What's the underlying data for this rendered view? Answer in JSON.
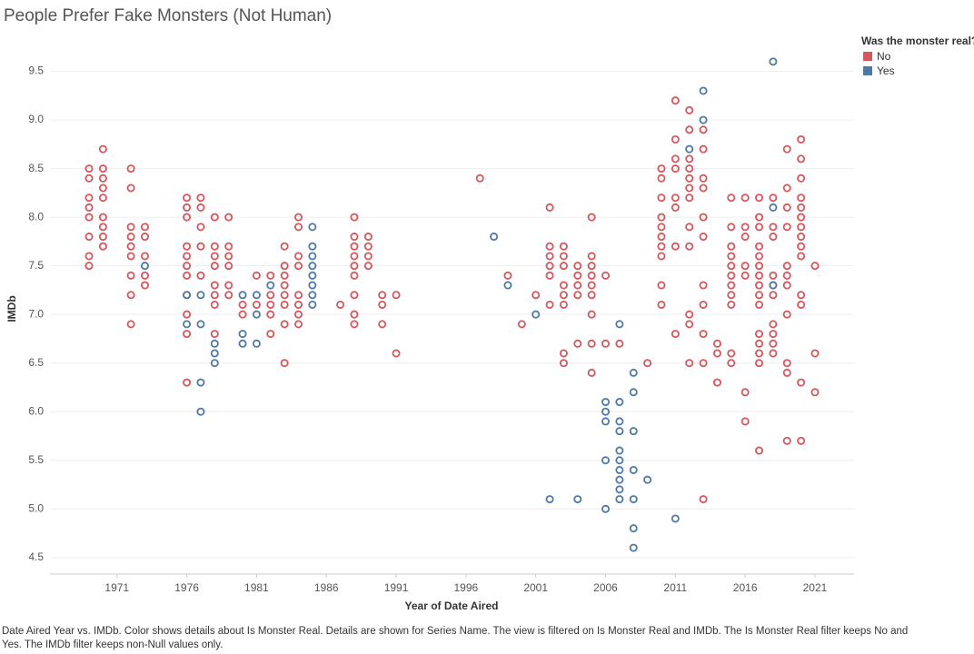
{
  "chart_data": {
    "type": "scatter",
    "title": "People Prefer Fake Monsters (Not Human)",
    "x_label": "Year of Date Aired",
    "y_label": "IMDb",
    "legend_title": "Was the monster real?",
    "legend_position": "right",
    "caption": "Date Aired Year vs. IMDb.  Color shows details about Is Monster Real.  Details are shown for Series Name. The view is filtered on Is Monster Real and IMDb. The Is Monster Real filter keeps No and Yes. The IMDb filter keeps non-Null values only.",
    "grid": true,
    "xlim": [
      1966.2,
      2023.8
    ],
    "xticks": [
      1971,
      1976,
      1981,
      1986,
      1991,
      1996,
      2001,
      2006,
      2011,
      2016,
      2021
    ],
    "ylim": [
      4.33,
      9.86
    ],
    "yticks": [
      4.5,
      {
        "value": 5,
        "label": "5.0"
      },
      5.5,
      {
        "value": 6,
        "label": "6.0"
      },
      6.5,
      {
        "value": 7,
        "label": "7.0"
      },
      7.5,
      {
        "value": 8,
        "label": "8.0"
      },
      8.5,
      {
        "value": 9,
        "label": "9.0"
      },
      9.5
    ],
    "series": [
      {
        "name": "No",
        "color": "#d4575b",
        "x": [
          1969,
          1969,
          1969,
          1969,
          1969,
          1969,
          1969,
          1969,
          1970,
          1970,
          1970,
          1970,
          1970,
          1970,
          1970,
          1970,
          1970,
          1972,
          1972,
          1972,
          1972,
          1972,
          1972,
          1972,
          1972,
          1972,
          1973,
          1973,
          1973,
          1973,
          1973,
          1976,
          1976,
          1976,
          1976,
          1976,
          1976,
          1976,
          1976,
          1976,
          1976,
          1976,
          1977,
          1977,
          1977,
          1977,
          1977,
          1978,
          1978,
          1978,
          1978,
          1978,
          1978,
          1978,
          1978,
          1979,
          1979,
          1979,
          1979,
          1979,
          1979,
          1980,
          1980,
          1981,
          1981,
          1982,
          1982,
          1982,
          1982,
          1982,
          1983,
          1983,
          1983,
          1983,
          1983,
          1983,
          1983,
          1983,
          1984,
          1984,
          1984,
          1984,
          1984,
          1984,
          1984,
          1984,
          1987,
          1988,
          1988,
          1988,
          1988,
          1988,
          1988,
          1988,
          1988,
          1988,
          1989,
          1989,
          1989,
          1989,
          1990,
          1990,
          1990,
          1991,
          1991,
          1997,
          1999,
          2000,
          2001,
          2002,
          2002,
          2002,
          2002,
          2002,
          2002,
          2003,
          2003,
          2003,
          2003,
          2003,
          2003,
          2003,
          2003,
          2004,
          2004,
          2004,
          2004,
          2004,
          2005,
          2005,
          2005,
          2005,
          2005,
          2005,
          2005,
          2005,
          2005,
          2006,
          2006,
          2007,
          2009,
          2010,
          2010,
          2010,
          2010,
          2010,
          2010,
          2010,
          2010,
          2010,
          2010,
          2011,
          2011,
          2011,
          2011,
          2011,
          2011,
          2011,
          2011,
          2012,
          2012,
          2012,
          2012,
          2012,
          2012,
          2012,
          2012,
          2012,
          2012,
          2012,
          2012,
          2013,
          2013,
          2013,
          2013,
          2013,
          2013,
          2013,
          2013,
          2013,
          2013,
          2013,
          2014,
          2014,
          2014,
          2015,
          2015,
          2015,
          2015,
          2015,
          2015,
          2015,
          2015,
          2015,
          2015,
          2015,
          2016,
          2016,
          2016,
          2016,
          2016,
          2016,
          2016,
          2017,
          2017,
          2017,
          2017,
          2017,
          2017,
          2017,
          2017,
          2017,
          2017,
          2017,
          2017,
          2017,
          2017,
          2017,
          2018,
          2018,
          2018,
          2018,
          2018,
          2018,
          2018,
          2018,
          2018,
          2018,
          2019,
          2019,
          2019,
          2019,
          2019,
          2019,
          2019,
          2019,
          2019,
          2019,
          2019,
          2020,
          2020,
          2020,
          2020,
          2020,
          2020,
          2020,
          2020,
          2020,
          2020,
          2020,
          2020,
          2020,
          2020,
          2021,
          2021,
          2021
        ],
        "values": [
          8.5,
          8.4,
          8.2,
          8.1,
          8.0,
          7.8,
          7.6,
          7.5,
          8.7,
          8.5,
          8.4,
          8.3,
          8.2,
          8.0,
          7.9,
          7.8,
          7.7,
          8.5,
          8.3,
          7.9,
          7.8,
          7.7,
          7.6,
          7.4,
          7.2,
          6.9,
          7.9,
          7.8,
          7.6,
          7.4,
          7.3,
          8.2,
          8.1,
          8.0,
          7.7,
          7.6,
          7.5,
          7.4,
          7.2,
          7.0,
          6.8,
          6.3,
          8.2,
          8.1,
          7.9,
          7.7,
          7.4,
          8.0,
          7.7,
          7.6,
          7.5,
          7.3,
          7.2,
          7.1,
          6.8,
          8.0,
          7.7,
          7.6,
          7.5,
          7.3,
          7.2,
          7.1,
          7.0,
          7.4,
          7.1,
          7.4,
          7.2,
          7.1,
          7.0,
          6.8,
          7.7,
          7.5,
          7.4,
          7.3,
          7.2,
          7.1,
          6.9,
          6.5,
          8.0,
          7.9,
          7.6,
          7.5,
          7.2,
          7.1,
          7.0,
          6.9,
          7.1,
          8.0,
          7.8,
          7.7,
          7.6,
          7.5,
          7.4,
          7.2,
          7.0,
          6.9,
          7.8,
          7.7,
          7.6,
          7.5,
          7.2,
          7.1,
          6.9,
          7.2,
          6.6,
          8.4,
          7.4,
          6.9,
          7.2,
          8.1,
          7.7,
          7.6,
          7.5,
          7.4,
          7.1,
          7.7,
          7.6,
          7.5,
          7.3,
          7.2,
          7.1,
          6.6,
          6.5,
          7.5,
          7.4,
          7.3,
          7.2,
          6.7,
          8.0,
          7.6,
          7.5,
          7.4,
          7.3,
          7.2,
          7.0,
          6.7,
          6.4,
          7.4,
          6.7,
          6.7,
          6.5,
          8.5,
          8.4,
          8.2,
          8.0,
          7.9,
          7.8,
          7.7,
          7.6,
          7.3,
          7.1,
          9.2,
          8.8,
          8.6,
          8.5,
          8.2,
          8.1,
          7.7,
          6.8,
          9.1,
          8.9,
          8.6,
          8.5,
          8.4,
          8.3,
          8.2,
          7.9,
          7.7,
          7.0,
          6.9,
          6.5,
          8.9,
          8.7,
          8.4,
          8.3,
          8.0,
          7.8,
          7.3,
          7.1,
          6.8,
          6.5,
          5.1,
          6.7,
          6.6,
          6.3,
          8.2,
          7.9,
          7.7,
          7.6,
          7.5,
          7.4,
          7.3,
          7.2,
          7.1,
          6.6,
          6.5,
          8.2,
          7.9,
          7.8,
          7.5,
          7.4,
          6.2,
          5.9,
          8.2,
          8.0,
          7.9,
          7.7,
          7.6,
          7.5,
          7.4,
          7.3,
          7.2,
          7.1,
          6.8,
          6.7,
          6.6,
          6.5,
          5.6,
          8.2,
          7.9,
          7.8,
          7.4,
          7.3,
          7.2,
          6.9,
          6.8,
          6.7,
          6.6,
          8.7,
          8.3,
          8.1,
          7.9,
          7.5,
          7.4,
          7.3,
          7.0,
          6.5,
          6.4,
          5.7,
          8.8,
          8.6,
          8.4,
          8.2,
          8.1,
          8.0,
          7.9,
          7.8,
          7.7,
          7.6,
          7.2,
          7.1,
          6.3,
          5.7,
          7.5,
          6.6,
          6.2
        ]
      },
      {
        "name": "Yes",
        "color": "#4e79a7",
        "x": [
          1973,
          1976,
          1976,
          1977,
          1977,
          1977,
          1977,
          1978,
          1978,
          1978,
          1980,
          1980,
          1980,
          1981,
          1981,
          1981,
          1982,
          1985,
          1985,
          1985,
          1985,
          1985,
          1985,
          1985,
          1985,
          1998,
          1999,
          2001,
          2002,
          2004,
          2006,
          2006,
          2006,
          2006,
          2006,
          2007,
          2007,
          2007,
          2007,
          2007,
          2007,
          2007,
          2007,
          2007,
          2007,
          2008,
          2008,
          2008,
          2008,
          2008,
          2008,
          2008,
          2009,
          2011,
          2012,
          2013,
          2013,
          2018,
          2018,
          2018
        ],
        "values": [
          7.5,
          7.2,
          6.9,
          7.2,
          6.9,
          6.3,
          6.0,
          6.7,
          6.6,
          6.5,
          7.2,
          6.8,
          6.7,
          7.2,
          7.0,
          6.7,
          7.3,
          7.9,
          7.7,
          7.6,
          7.5,
          7.4,
          7.3,
          7.2,
          7.1,
          7.8,
          7.3,
          7.0,
          5.1,
          5.1,
          6.1,
          6.0,
          5.9,
          5.5,
          5.0,
          6.9,
          6.1,
          5.9,
          5.8,
          5.6,
          5.5,
          5.4,
          5.3,
          5.2,
          5.1,
          6.4,
          6.2,
          5.8,
          5.4,
          5.1,
          4.8,
          4.6,
          5.3,
          4.9,
          8.7,
          9.3,
          9.0,
          9.6,
          8.1,
          7.3
        ]
      }
    ]
  }
}
